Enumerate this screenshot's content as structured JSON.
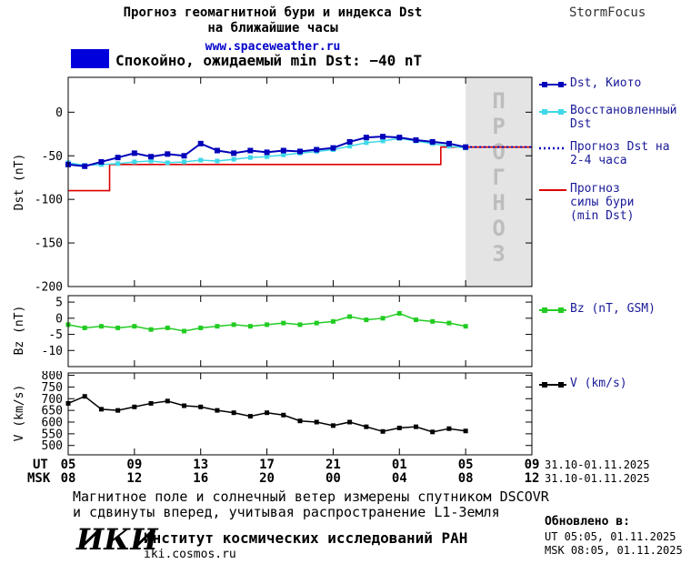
{
  "header": {
    "title_line1": "Прогноз геомагнитной бури и индекса Dst",
    "title_line2": "на ближайшие часы",
    "site": "www.spaceweather.ru",
    "brand": "StormFocus"
  },
  "status_banner": {
    "swatch_color": "#0000dd",
    "text": "Спокойно, ожидаемый min Dst: −40 nT"
  },
  "forecast_region_label": "ПРОГНОЗ",
  "chart_data": [
    {
      "type": "line",
      "panel": "dst",
      "ylabel": "Dst (nT)",
      "ylim": [
        -200,
        40
      ],
      "yticks": [
        0,
        -50,
        -100,
        -150,
        -200
      ],
      "xlim": [
        5,
        33
      ],
      "xticks": [
        5,
        9,
        13,
        17,
        21,
        25,
        29,
        33
      ],
      "forecast_start": 29,
      "series": [
        {
          "name": "Dst, Киото",
          "color": "#0000bb",
          "marker": true,
          "msize": 6,
          "width": 2,
          "x": [
            5,
            6,
            7,
            8,
            9,
            10,
            11,
            12,
            13,
            14,
            15,
            16,
            17,
            18,
            19,
            20,
            21,
            22,
            23,
            24,
            25,
            26,
            27,
            28,
            29
          ],
          "y": [
            -60,
            -62,
            -57,
            -52,
            -47,
            -51,
            -48,
            -50,
            -36,
            -44,
            -47,
            -44,
            -46,
            -44,
            -45,
            -43,
            -41,
            -34,
            -29,
            -28,
            -29,
            -32,
            -34,
            -36,
            -40
          ]
        },
        {
          "name": "Восстановленный Dst",
          "color": "#3fd8e8",
          "marker": true,
          "msize": 5,
          "width": 1.5,
          "x": [
            5,
            6,
            7,
            8,
            9,
            10,
            11,
            12,
            13,
            14,
            15,
            16,
            17,
            18,
            19,
            20,
            21,
            22,
            23,
            24,
            25,
            26,
            27,
            28,
            29
          ],
          "y": [
            -58,
            -61,
            -60,
            -59,
            -57,
            -56,
            -58,
            -57,
            -55,
            -56,
            -54,
            -52,
            -51,
            -49,
            -47,
            -45,
            -43,
            -39,
            -35,
            -33,
            -30,
            -33,
            -36,
            -39,
            -41
          ]
        },
        {
          "name": "Прогноз Dst на 2-4 часа",
          "color": "#0000bb",
          "dash": "2,3",
          "width": 2,
          "x": [
            29,
            33
          ],
          "y": [
            -40,
            -40
          ]
        },
        {
          "name": "Прогноз силы бури (min Dst)",
          "color": "#dd0000",
          "width": 1.6,
          "x": [
            5,
            7.5,
            7.5,
            27.5,
            27.5,
            33
          ],
          "y": [
            -90,
            -90,
            -60,
            -60,
            -40,
            -40
          ]
        }
      ]
    },
    {
      "type": "line",
      "panel": "bz",
      "ylabel": "Bz (nT)",
      "ylim": [
        -15,
        7
      ],
      "yticks": [
        5,
        0,
        -5,
        -10
      ],
      "xlim": [
        5,
        33
      ],
      "xticks": [
        5,
        9,
        13,
        17,
        21,
        25,
        29,
        33
      ],
      "series": [
        {
          "name": "Bz (nT, GSM)",
          "color": "#22cc22",
          "marker": true,
          "msize": 5,
          "width": 1.5,
          "x": [
            5,
            6,
            7,
            8,
            9,
            10,
            11,
            12,
            13,
            14,
            15,
            16,
            17,
            18,
            19,
            20,
            21,
            22,
            23,
            24,
            25,
            26,
            27,
            28,
            29
          ],
          "y": [
            -2,
            -3,
            -2.5,
            -3,
            -2.5,
            -3.5,
            -3,
            -4,
            -3,
            -2.5,
            -2,
            -2.5,
            -2,
            -1.5,
            -2,
            -1.5,
            -1,
            0.5,
            -0.5,
            0,
            1.5,
            -0.5,
            -1,
            -1.5,
            -2.5
          ]
        }
      ]
    },
    {
      "type": "line",
      "panel": "v",
      "ylabel": "V (km/s)",
      "ylim": [
        460,
        810
      ],
      "yticks": [
        800,
        750,
        700,
        650,
        600,
        550,
        500
      ],
      "xlim": [
        5,
        33
      ],
      "xticks": [
        5,
        9,
        13,
        17,
        21,
        25,
        29,
        33
      ],
      "series": [
        {
          "name": "V (km/s)",
          "color": "#000000",
          "marker": true,
          "msize": 5,
          "width": 1.5,
          "x": [
            5,
            6,
            7,
            8,
            9,
            10,
            11,
            12,
            13,
            14,
            15,
            16,
            17,
            18,
            19,
            20,
            21,
            22,
            23,
            24,
            25,
            26,
            27,
            28,
            29
          ],
          "y": [
            680,
            710,
            655,
            650,
            665,
            680,
            690,
            670,
            665,
            650,
            640,
            625,
            640,
            630,
            605,
            600,
            585,
            600,
            580,
            560,
            575,
            580,
            558,
            572,
            562
          ]
        }
      ]
    }
  ],
  "xaxis": {
    "ut_label": "UT",
    "msk_label": "MSK",
    "ut_ticks": [
      "05",
      "09",
      "13",
      "17",
      "21",
      "01",
      "05",
      "09"
    ],
    "msk_ticks": [
      "08",
      "12",
      "16",
      "20",
      "00",
      "04",
      "08",
      "12"
    ],
    "date_ut": "31.10-01.11.2025",
    "date_msk": "31.10-01.11.2025"
  },
  "footer": {
    "note_line1": "Магнитное поле и солнечный ветер измерены спутником DSCOVR",
    "note_line2": "и сдвинуты вперед, учитывая распространение L1-Земля",
    "logo_text": "ИКИ",
    "institute": "Институт космических исследований РАН",
    "site": "iki.cosmos.ru",
    "updated_label": "Обновлено в:",
    "updated_ut": "UT  05:05, 01.11.2025",
    "updated_msk": "MSK 08:05, 01.11.2025"
  }
}
